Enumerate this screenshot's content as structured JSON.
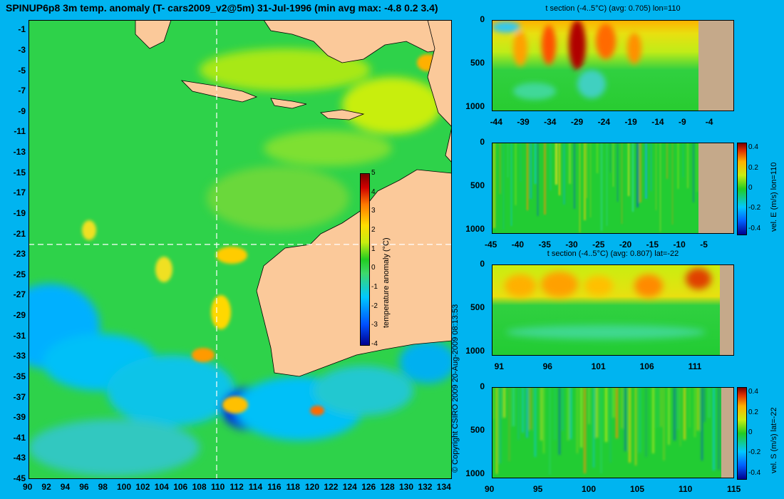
{
  "main_title": "SPINUP6p8 3m temp. anomaly (T- cars2009_v2@5m) 31-Jul-1996 (min avg max: -4.8 0.2 3.4)",
  "copyright": "© Copyright CSIRO 2009   20-Aug-2009 08:13:53",
  "colors": {
    "background": "#00b4f0",
    "land": "#fbc99a",
    "section_land": "#c5a98a",
    "colormap": [
      "#00008f",
      "#0050ff",
      "#00c8ff",
      "#3ed86a",
      "#22cc22",
      "#c8ee10",
      "#ffdd00",
      "#ff7a00",
      "#d00000",
      "#7a0000"
    ]
  },
  "chart_data": [
    {
      "id": "map",
      "type": "heatmap",
      "title": "SPINUP6p8 3m temp. anomaly (T- cars2009_v2@5m) 31-Jul-1996 (min avg max: -4.8 0.2 3.4)",
      "x_ticks": [
        "90",
        "92",
        "94",
        "96",
        "98",
        "100",
        "102",
        "104",
        "106",
        "108",
        "110",
        "112",
        "114",
        "116",
        "118",
        "120",
        "122",
        "124",
        "126",
        "128",
        "130",
        "132",
        "134"
      ],
      "y_ticks": [
        "-1",
        "-3",
        "-5",
        "-7",
        "-9",
        "-11",
        "-13",
        "-15",
        "-17",
        "-19",
        "-21",
        "-23",
        "-25",
        "-27",
        "-29",
        "-31",
        "-33",
        "-35",
        "-37",
        "-39",
        "-41",
        "-43",
        "-45"
      ],
      "xlim": [
        90,
        135
      ],
      "ylim": [
        -45,
        0
      ],
      "section_lines": {
        "lon": 110,
        "lat": -22
      },
      "colorbar": {
        "label": "temperature anomaly (°C)",
        "ticks": [
          "5",
          "4",
          "3",
          "2",
          "1",
          "0",
          "-1",
          "-2",
          "-3",
          "-4"
        ],
        "range": [
          -4,
          5
        ]
      },
      "stats": {
        "min": -4.8,
        "avg": 0.2,
        "max": 3.4
      }
    },
    {
      "id": "t-section-lon110",
      "type": "heatmap",
      "title": "t section (-4..5°C) (avg: 0.705) lon=110",
      "x_ticks": [
        "-44",
        "-39",
        "-34",
        "-29",
        "-24",
        "-19",
        "-14",
        "-9",
        "-4"
      ],
      "y_ticks": [
        "0",
        "500",
        "1000"
      ],
      "xlim": [
        -45,
        0
      ],
      "ylim": [
        1050,
        0
      ],
      "avg": 0.705
    },
    {
      "id": "vel-e-lon110",
      "type": "heatmap",
      "title": "",
      "x_ticks": [
        "-45",
        "-40",
        "-35",
        "-30",
        "-25",
        "-20",
        "-15",
        "-10",
        "-5"
      ],
      "y_ticks": [
        "0",
        "500",
        "1000"
      ],
      "xlim": [
        -45,
        0
      ],
      "ylim": [
        1050,
        0
      ],
      "colorbar": {
        "label": "vel. E (m/s) lon=110",
        "ticks": [
          "0.4",
          "0.2",
          "0",
          "-0.2",
          "-0.4"
        ],
        "range": [
          -0.45,
          0.45
        ]
      }
    },
    {
      "id": "t-section-lat-22",
      "type": "heatmap",
      "title": "t section (-4..5°C) (avg: 0.807) lat=-22",
      "x_ticks": [
        "91",
        "96",
        "101",
        "106",
        "111"
      ],
      "y_ticks": [
        "0",
        "500",
        "1000"
      ],
      "xlim": [
        90,
        115
      ],
      "ylim": [
        1050,
        0
      ],
      "avg": 0.807
    },
    {
      "id": "vel-s-lat-22",
      "type": "heatmap",
      "title": "",
      "x_ticks": [
        "90",
        "95",
        "100",
        "105",
        "110",
        "115"
      ],
      "y_ticks": [
        "0",
        "500",
        "1000"
      ],
      "xlim": [
        90,
        115
      ],
      "ylim": [
        1050,
        0
      ],
      "colorbar": {
        "label": "vel. S (m/s) lat=-22",
        "ticks": [
          "0.4",
          "0.2",
          "0",
          "-0.2",
          "-0.4"
        ],
        "range": [
          -0.45,
          0.45
        ]
      }
    }
  ]
}
